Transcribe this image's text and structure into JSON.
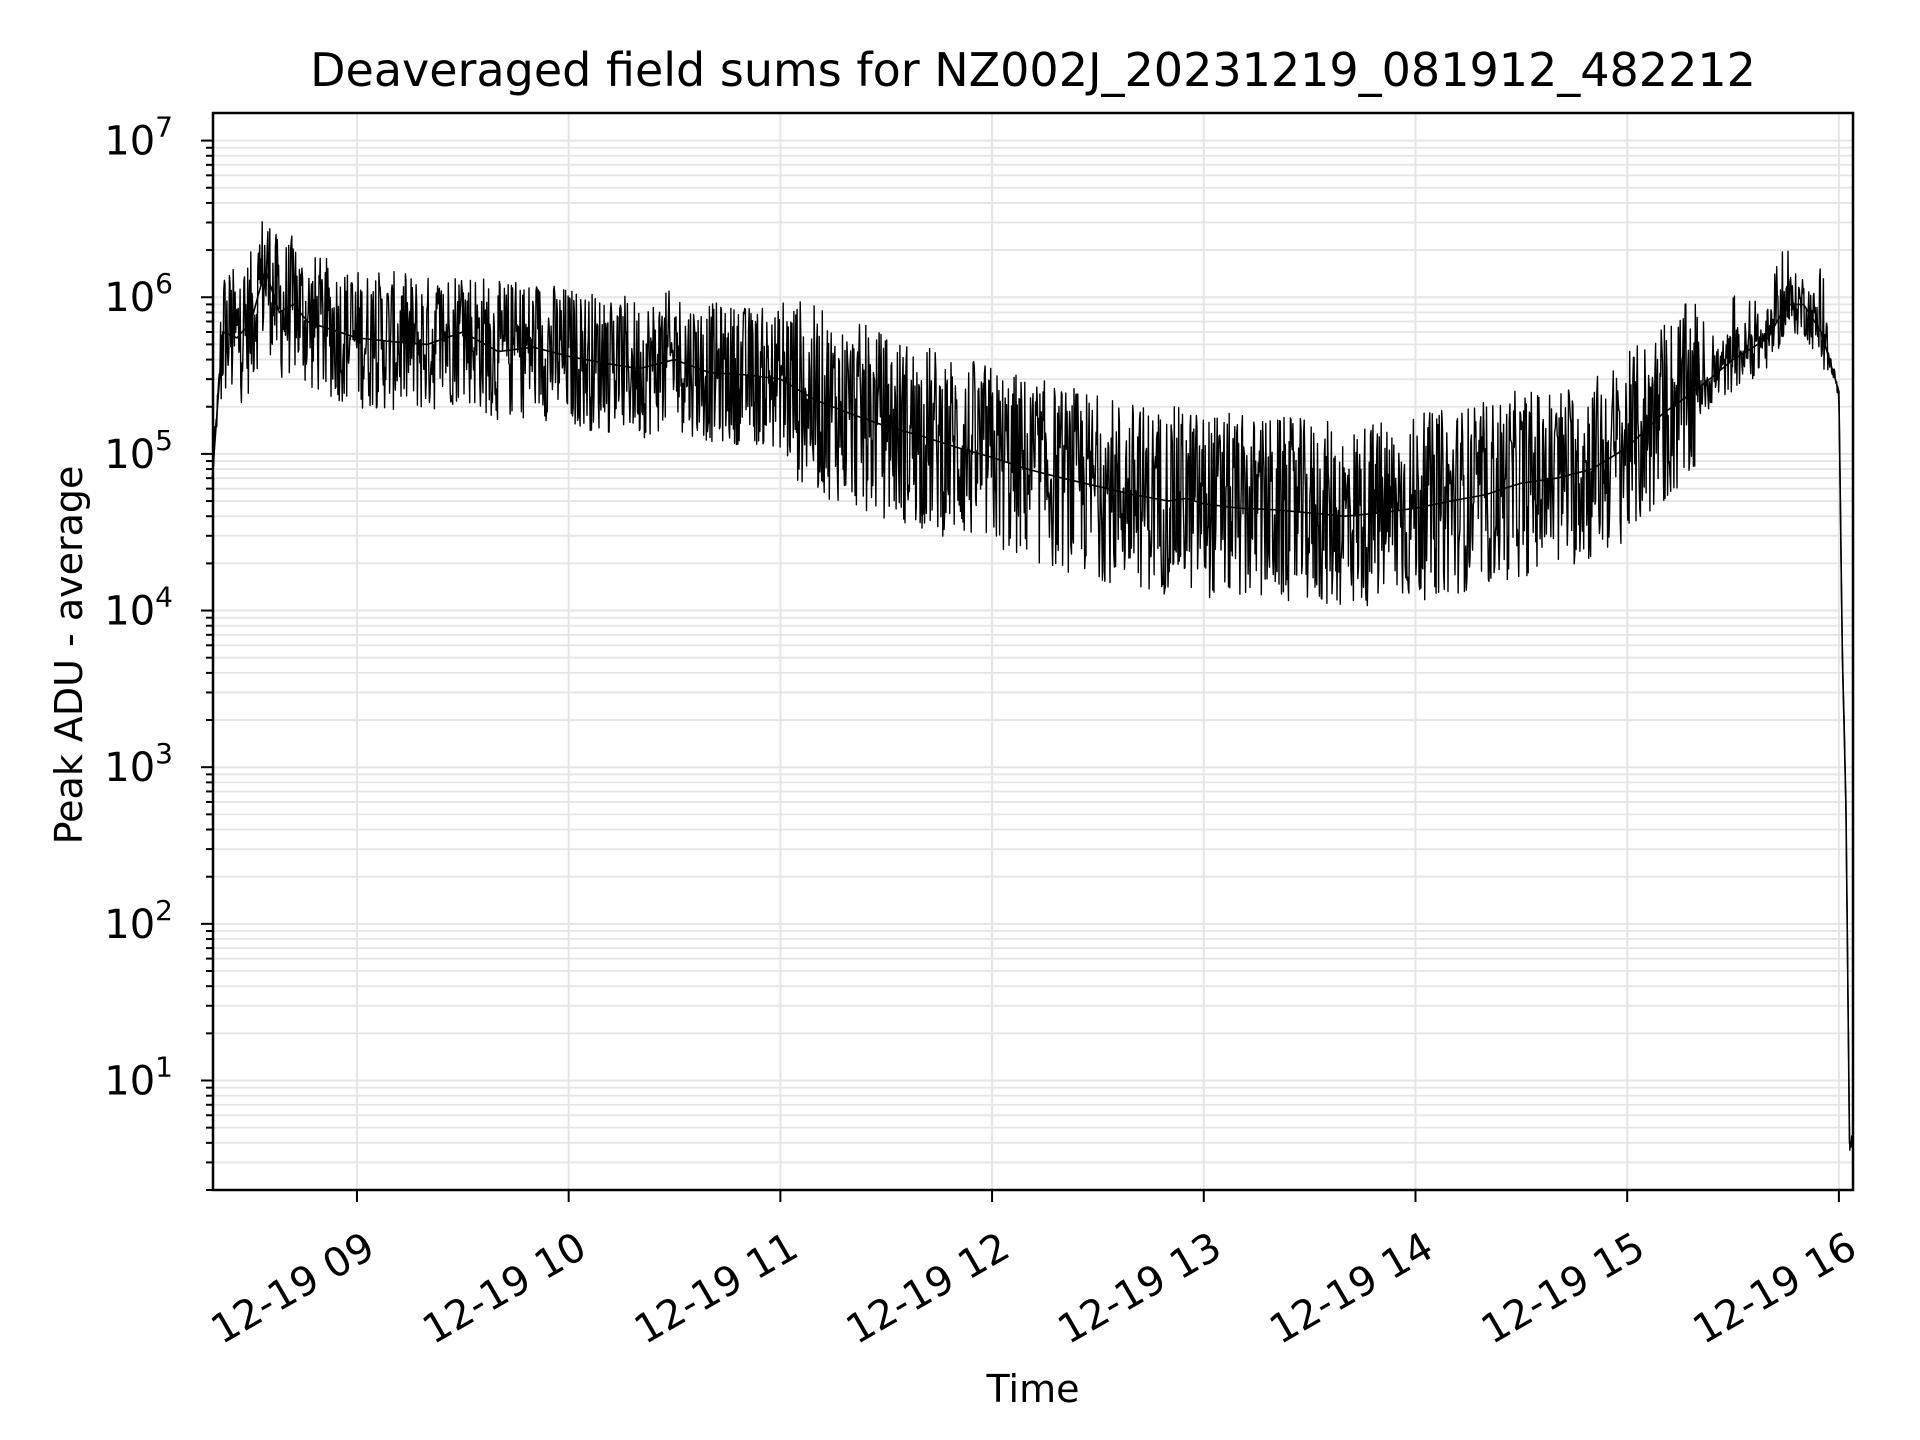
{
  "chart_data": {
    "type": "line",
    "title": "Deaveraged field sums for NZ002J_20231219_081912_482212",
    "xlabel": "Time",
    "ylabel": "Peak ADU - average",
    "x_axis_type": "datetime",
    "x_range": [
      "2023-12-19 08:19:12",
      "2023-12-19 16:04:00"
    ],
    "x_ticks": [
      "12-19 09",
      "12-19 10",
      "12-19 11",
      "12-19 12",
      "12-19 13",
      "12-19 14",
      "12-19 15",
      "12-19 16"
    ],
    "y_scale": "log",
    "ylim": [
      2,
      15000000
    ],
    "y_ticks": [
      {
        "base": "10",
        "exp": "1"
      },
      {
        "base": "10",
        "exp": "2"
      },
      {
        "base": "10",
        "exp": "3"
      },
      {
        "base": "10",
        "exp": "4"
      },
      {
        "base": "10",
        "exp": "5"
      },
      {
        "base": "10",
        "exp": "6"
      },
      {
        "base": "10",
        "exp": "7"
      }
    ],
    "grid": true,
    "line_color": "#000000",
    "grid_color": "#e5e5e5",
    "series": [
      {
        "x": [
          "08:19",
          "08:22",
          "08:26",
          "08:30",
          "08:34",
          "08:38",
          "08:42",
          "08:46",
          "08:50",
          "08:55",
          "09:00",
          "09:10",
          "09:20",
          "09:30",
          "09:40",
          "09:50",
          "10:00",
          "10:10",
          "10:20",
          "10:30",
          "10:40",
          "10:50",
          "11:00",
          "11:10",
          "11:20",
          "11:30",
          "11:40",
          "11:50",
          "12:00",
          "12:10",
          "12:20",
          "12:30",
          "12:40",
          "12:50",
          "12:55",
          "13:00",
          "13:10",
          "13:20",
          "13:30",
          "13:40",
          "13:50",
          "14:00",
          "14:10",
          "14:20",
          "14:25",
          "14:30",
          "14:40",
          "14:50",
          "15:00",
          "15:10",
          "15:20",
          "15:30",
          "15:40",
          "15:45",
          "15:50",
          "15:55",
          "16:00",
          "16:01",
          "16:02",
          "16:03",
          "16:04"
        ],
        "y": [
          70000,
          600000,
          550000,
          700000,
          1500000,
          800000,
          900000,
          700000,
          650000,
          600000,
          550000,
          520000,
          500000,
          600000,
          450000,
          480000,
          420000,
          380000,
          350000,
          400000,
          330000,
          320000,
          300000,
          220000,
          180000,
          150000,
          130000,
          110000,
          95000,
          80000,
          70000,
          62000,
          55000,
          50000,
          52000,
          48000,
          45000,
          44000,
          42000,
          40000,
          42000,
          45000,
          50000,
          55000,
          60000,
          65000,
          70000,
          80000,
          110000,
          180000,
          260000,
          400000,
          550000,
          900000,
          900000,
          600000,
          250000,
          5000,
          600,
          4,
          4
        ]
      }
    ]
  }
}
